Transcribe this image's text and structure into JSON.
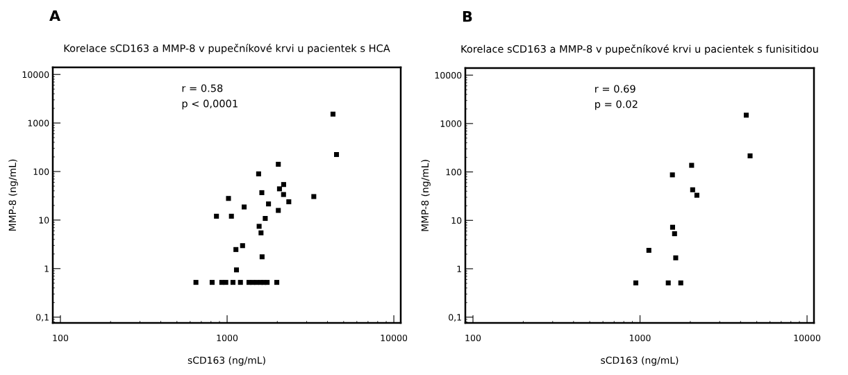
{
  "chart_data": [
    {
      "type": "scatter",
      "title": "Korelace sCD163 a MMP-8 v pupečníkové krvi u pacientek s HCA",
      "xlabel": "sCD163 (ng/mL)",
      "ylabel": "MMP-8 (ng/mL)",
      "log": "xy",
      "marker": "square",
      "grid": false,
      "legend": false,
      "annotations": [
        "A",
        "r = 0.58",
        "p < 0,0001"
      ],
      "xlim": [
        90,
        11000
      ],
      "ylim": [
        0.076,
        14000
      ],
      "xticks": [
        100,
        1000,
        10000
      ],
      "yticks": [
        {
          "value": 0.1,
          "label": "0,1"
        },
        1,
        10,
        100,
        1000,
        10000
      ],
      "series": [
        {
          "color": "#000000",
          "x": [
            4315,
            4530,
            2028,
            1545,
            2183,
            2061,
            1615,
            2180,
            2344,
            3311,
            1019,
            1771,
            1265,
            2028,
            863,
            1061,
            1693,
            1556,
            1597,
            1238,
            1129,
            1621,
            1138,
            650,
            813,
            929,
            982,
            1084,
            1202,
            1352,
            1425,
            1505,
            1590,
            1660,
            1738,
            1986
          ],
          "values": [
            1524,
            224,
            141,
            89.5,
            54,
            44,
            36.7,
            33.6,
            23.8,
            30.5,
            27.9,
            21.5,
            18.6,
            15.8,
            12.0,
            12.0,
            10.8,
            7.43,
            5.45,
            2.97,
            2.47,
            1.75,
            0.94,
            0.52,
            0.52,
            0.52,
            0.52,
            0.52,
            0.52,
            0.52,
            0.52,
            0.52,
            0.52,
            0.52,
            0.52,
            0.52
          ]
        }
      ]
    },
    {
      "type": "scatter",
      "title": "Korelace sCD163 a MMP-8 v pupečníkové krvi u pacientek s funisitidou",
      "xlabel": "sCD163 (ng/mL)",
      "ylabel": "MMP-8 (ng/mL)",
      "log": "xy",
      "marker": "square",
      "grid": false,
      "legend": false,
      "annotations": [
        "B",
        "r = 0.69",
        "p = 0.02"
      ],
      "xlim": [
        90,
        11000
      ],
      "ylim": [
        0.076,
        14000
      ],
      "xticks": [
        100,
        1000,
        10000
      ],
      "yticks": [
        {
          "value": 0.1,
          "label": "0,1"
        },
        1,
        10,
        100,
        1000,
        10000
      ],
      "series": [
        {
          "color": "#000000",
          "x": [
            4325,
            4560,
            2037,
            1563,
            2066,
            2190,
            1567,
            1610,
            1130,
            1636,
            944,
            1476,
            1754
          ],
          "values": [
            1489,
            215,
            137,
            87,
            42.8,
            33.0,
            7.2,
            5.29,
            2.4,
            1.68,
            0.51,
            0.51,
            0.51
          ]
        }
      ]
    }
  ]
}
